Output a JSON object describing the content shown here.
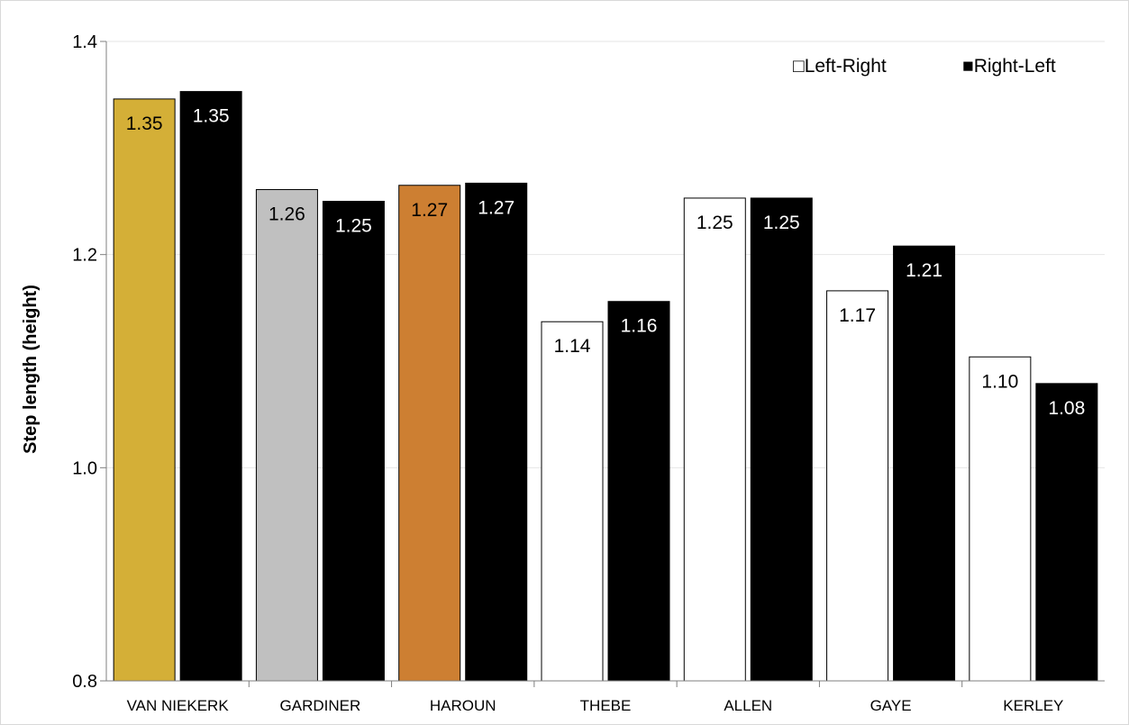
{
  "chart_data": {
    "type": "bar",
    "categories": [
      "VAN NIEKERK",
      "GARDINER",
      "HAROUN",
      "THEBE",
      "ALLEN",
      "GAYE",
      "KERLEY"
    ],
    "series": [
      {
        "name": "Left-Right",
        "values": [
          1.346,
          1.261,
          1.265,
          1.137,
          1.253,
          1.166,
          1.104
        ],
        "labels": [
          "1.35",
          "1.26",
          "1.27",
          "1.14",
          "1.25",
          "1.17",
          "1.10"
        ],
        "colors": [
          "#d4af37",
          "#c0c0c0",
          "#cd7f32",
          "#ffffff",
          "#ffffff",
          "#ffffff",
          "#ffffff"
        ],
        "label_color": "#000000",
        "legend_marker": "□"
      },
      {
        "name": "Right-Left",
        "values": [
          1.353,
          1.25,
          1.267,
          1.156,
          1.253,
          1.208,
          1.079
        ],
        "labels": [
          "1.35",
          "1.25",
          "1.27",
          "1.16",
          "1.25",
          "1.21",
          "1.08"
        ],
        "colors": [
          "#000000",
          "#000000",
          "#000000",
          "#000000",
          "#000000",
          "#000000",
          "#000000"
        ],
        "label_color": "#ffffff",
        "legend_marker": "■"
      }
    ],
    "title": "",
    "xlabel": "",
    "ylabel": "Step length (height)",
    "ylim": [
      0.8,
      1.4
    ],
    "yticks": [
      "0.8",
      "1.0",
      "1.2",
      "1.4"
    ],
    "grid": true,
    "legend_position": "top-right"
  }
}
